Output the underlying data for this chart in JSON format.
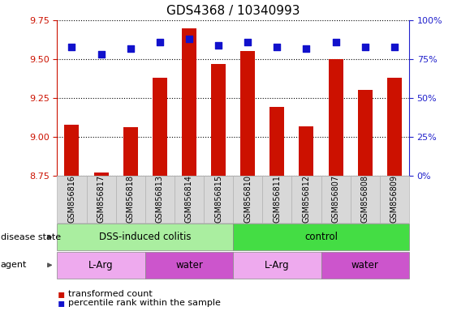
{
  "title": "GDS4368 / 10340993",
  "samples": [
    "GSM856816",
    "GSM856817",
    "GSM856818",
    "GSM856813",
    "GSM856814",
    "GSM856815",
    "GSM856810",
    "GSM856811",
    "GSM856812",
    "GSM856807",
    "GSM856808",
    "GSM856809"
  ],
  "transformed_count": [
    9.08,
    8.77,
    9.06,
    9.38,
    9.7,
    9.47,
    9.55,
    9.19,
    9.07,
    9.5,
    9.3,
    9.38
  ],
  "percentile_rank": [
    83,
    78,
    82,
    86,
    88,
    84,
    86,
    83,
    82,
    86,
    83,
    83
  ],
  "ylim_left": [
    8.75,
    9.75
  ],
  "ylim_right": [
    0,
    100
  ],
  "yticks_left": [
    8.75,
    9.0,
    9.25,
    9.5,
    9.75
  ],
  "yticks_right": [
    0,
    25,
    50,
    75,
    100
  ],
  "bar_color": "#cc1100",
  "dot_color": "#1111cc",
  "disease_state_groups": [
    {
      "label": "DSS-induced colitis",
      "start": 0,
      "end": 6,
      "color": "#aaeea0"
    },
    {
      "label": "control",
      "start": 6,
      "end": 12,
      "color": "#44dd44"
    }
  ],
  "agent_groups": [
    {
      "label": "L-Arg",
      "start": 0,
      "end": 3,
      "color": "#eeaaee"
    },
    {
      "label": "water",
      "start": 3,
      "end": 6,
      "color": "#cc55cc"
    },
    {
      "label": "L-Arg",
      "start": 6,
      "end": 9,
      "color": "#eeaaee"
    },
    {
      "label": "water",
      "start": 9,
      "end": 12,
      "color": "#cc55cc"
    }
  ],
  "legend_bar_label": "transformed count",
  "legend_dot_label": "percentile rank within the sample",
  "background_color": "#ffffff",
  "left_tick_color": "#cc1100",
  "right_tick_color": "#2222cc",
  "title_fontsize": 11,
  "tick_fontsize": 8,
  "sample_label_fontsize": 7,
  "group_label_fontsize": 8.5,
  "row_label_fontsize": 8,
  "legend_fontsize": 8
}
